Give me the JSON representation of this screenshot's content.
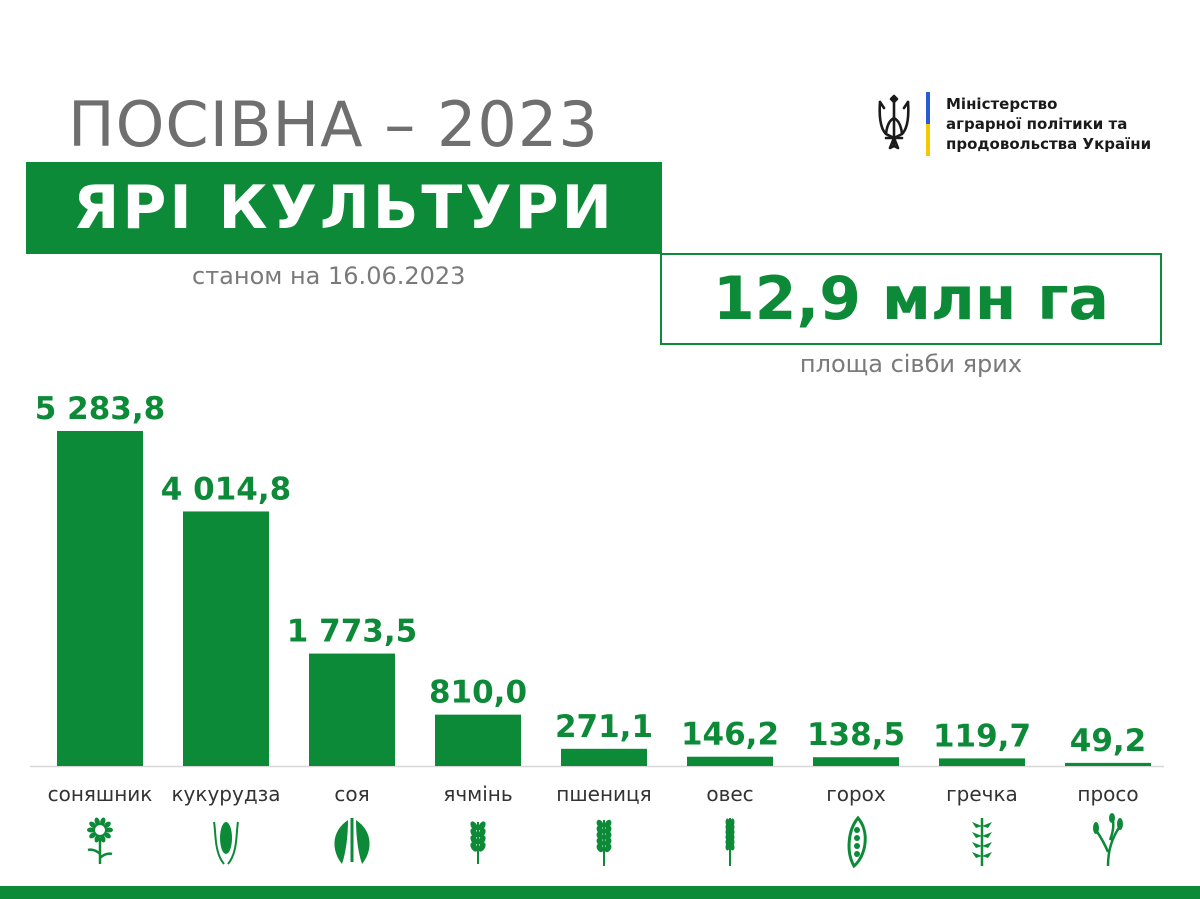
{
  "header": {
    "title": "ПОСІВНА – 2023",
    "subtitle": "ЯРІ КУЛЬТУРИ",
    "date": "станом на 16.06.2023"
  },
  "total": {
    "value": "12,9 млн га",
    "caption": "площа сівби ярих"
  },
  "ministry": {
    "line1": "Міністерство",
    "line2": "аграрної політики та",
    "line3": "продовольства України"
  },
  "colors": {
    "accent": "#0c8a37",
    "gray_text": "#7a7a7a",
    "flag_blue": "#2a5bd7",
    "flag_yellow": "#f5c800"
  },
  "chart_data": {
    "type": "bar",
    "categories": [
      "соняшник",
      "кукурудза",
      "соя",
      "ячмінь",
      "пшениця",
      "овес",
      "горох",
      "гречка",
      "просо"
    ],
    "values": [
      5283.8,
      4014.8,
      1773.5,
      810.0,
      271.1,
      146.2,
      138.5,
      119.7,
      49.2
    ],
    "labels": [
      "5 283,8",
      "4 014,8",
      "1 773,5",
      "810,0",
      "271,1",
      "146,2",
      "138,5",
      "119,7",
      "49,2"
    ],
    "icons": [
      "sunflower-icon",
      "corn-icon",
      "soybean-icon",
      "barley-icon",
      "wheat-icon",
      "oat-icon",
      "pea-icon",
      "buckwheat-icon",
      "millet-icon"
    ],
    "title": "",
    "xlabel": "",
    "ylabel": "",
    "ylim": [
      0,
      5283.8
    ],
    "grid": false,
    "legend": "none"
  }
}
